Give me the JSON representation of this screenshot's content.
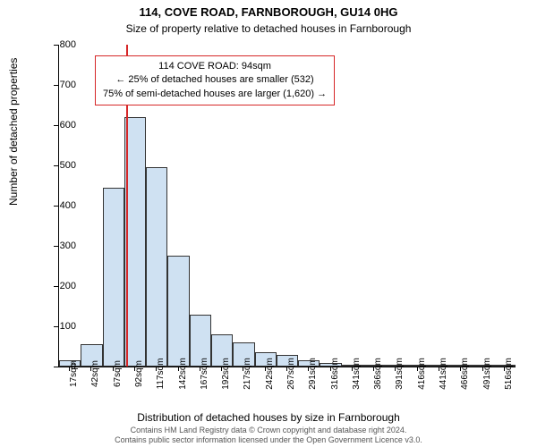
{
  "title_line1": "114, COVE ROAD, FARNBOROUGH, GU14 0HG",
  "title_line2": "Size of property relative to detached houses in Farnborough",
  "ylabel": "Number of detached properties",
  "xlabel": "Distribution of detached houses by size in Farnborough",
  "copyright_line1": "Contains HM Land Registry data © Crown copyright and database right 2024.",
  "copyright_line2": "Contains public sector information licensed under the Open Government Licence v3.0.",
  "chart": {
    "type": "histogram",
    "ylim": [
      0,
      800
    ],
    "ytick_step": 100,
    "yticks": [
      0,
      100,
      200,
      300,
      400,
      500,
      600,
      700,
      800
    ],
    "categories": [
      "17sqm",
      "42sqm",
      "67sqm",
      "92sqm",
      "117sqm",
      "142sqm",
      "167sqm",
      "192sqm",
      "217sqm",
      "242sqm",
      "267sqm",
      "291sqm",
      "316sqm",
      "341sqm",
      "366sqm",
      "391sqm",
      "416sqm",
      "441sqm",
      "466sqm",
      "491sqm",
      "516sqm"
    ],
    "values": [
      15,
      55,
      445,
      620,
      495,
      275,
      130,
      80,
      60,
      35,
      30,
      15,
      10,
      5,
      5,
      3,
      3,
      2,
      2,
      2,
      1
    ],
    "bar_fill": "#cfe1f2",
    "bar_border": "#333333",
    "background": "#ffffff",
    "axis_color": "#000000",
    "marker": {
      "position_index": 3.1,
      "color": "#d62728"
    }
  },
  "info_box": {
    "border_color": "#d62728",
    "line1": "114 COVE ROAD: 94sqm",
    "line2": "← 25% of detached houses are smaller (532)",
    "line3": "75% of semi-detached houses are larger (1,620) →"
  }
}
